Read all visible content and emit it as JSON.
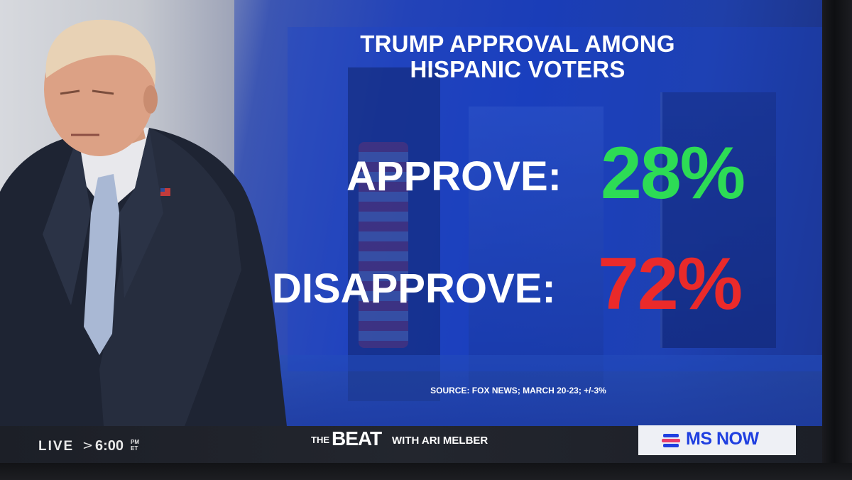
{
  "headline": {
    "line1": "TRUMP APPROVAL AMONG",
    "line2": "HISPANIC VOTERS"
  },
  "results": {
    "approve_label": "APPROVE:",
    "approve_value": "28%",
    "disapprove_label": "DISAPPROVE:",
    "disapprove_value": "72%"
  },
  "source": "SOURCE: FOX NEWS; MARCH 20-23; +/-3%",
  "lower_third": {
    "live": "LIVE",
    "arrow": ">",
    "time": "6:00",
    "ampm_top": "PM",
    "ampm_bottom": "ET",
    "show_the": "THE",
    "show_beat": "BEAT",
    "show_with": "WITH ARI MELBER",
    "network": "MS NOW"
  },
  "colors": {
    "approve": "#2ddc55",
    "disapprove": "#ea2a2a",
    "network_blue": "#1f3fe0"
  }
}
